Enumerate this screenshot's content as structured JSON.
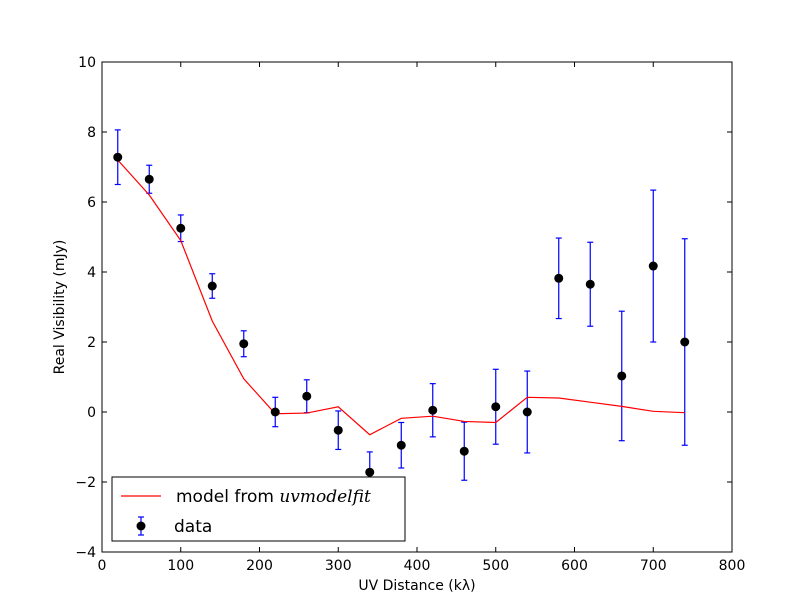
{
  "chart_data": {
    "type": "scatter",
    "title": "",
    "xlabel": "UV Distance (kλ)",
    "ylabel": "Real Visibility (mJy)",
    "xlim": [
      0,
      800
    ],
    "ylim": [
      -4,
      10
    ],
    "xticks": [
      0,
      100,
      200,
      300,
      400,
      500,
      600,
      700,
      800
    ],
    "yticks": [
      -4,
      -2,
      0,
      2,
      4,
      6,
      8,
      10
    ],
    "xtick_labels": [
      "0",
      "100",
      "200",
      "300",
      "400",
      "500",
      "600",
      "700",
      "800"
    ],
    "ytick_labels": [
      "−4",
      "−2",
      "0",
      "2",
      "4",
      "6",
      "8",
      "10"
    ],
    "grid": false,
    "legend_position": "lower-left",
    "series": [
      {
        "name": "model from uvmodelfit",
        "legend_prefix": "model from ",
        "legend_math": "uvmodelfit",
        "kind": "line",
        "color": "#ff0000",
        "x": [
          20,
          60,
          100,
          140,
          180,
          220,
          260,
          300,
          340,
          380,
          420,
          460,
          500,
          540,
          580,
          620,
          660,
          700,
          740
        ],
        "y": [
          7.2,
          6.2,
          4.9,
          2.6,
          0.95,
          -0.05,
          -0.03,
          0.15,
          -0.65,
          -0.18,
          -0.12,
          -0.27,
          -0.3,
          0.42,
          0.4,
          0.28,
          0.16,
          0.02,
          -0.02
        ]
      },
      {
        "name": "data",
        "kind": "errorbar",
        "marker_color": "#000000",
        "errorbar_color": "#0000ff",
        "x": [
          20,
          60,
          100,
          140,
          180,
          220,
          260,
          300,
          340,
          380,
          420,
          460,
          500,
          540,
          580,
          620,
          660,
          700,
          740
        ],
        "y": [
          7.28,
          6.65,
          5.25,
          3.6,
          1.95,
          0.0,
          0.45,
          -0.52,
          -1.72,
          -0.95,
          0.05,
          -1.12,
          0.15,
          0.0,
          3.82,
          3.65,
          1.03,
          4.17,
          2.0
        ],
        "yerr": [
          0.78,
          0.4,
          0.38,
          0.35,
          0.37,
          0.42,
          0.47,
          0.55,
          0.58,
          0.65,
          0.76,
          0.83,
          1.07,
          1.17,
          1.15,
          1.2,
          1.85,
          2.17,
          2.95
        ]
      }
    ]
  }
}
